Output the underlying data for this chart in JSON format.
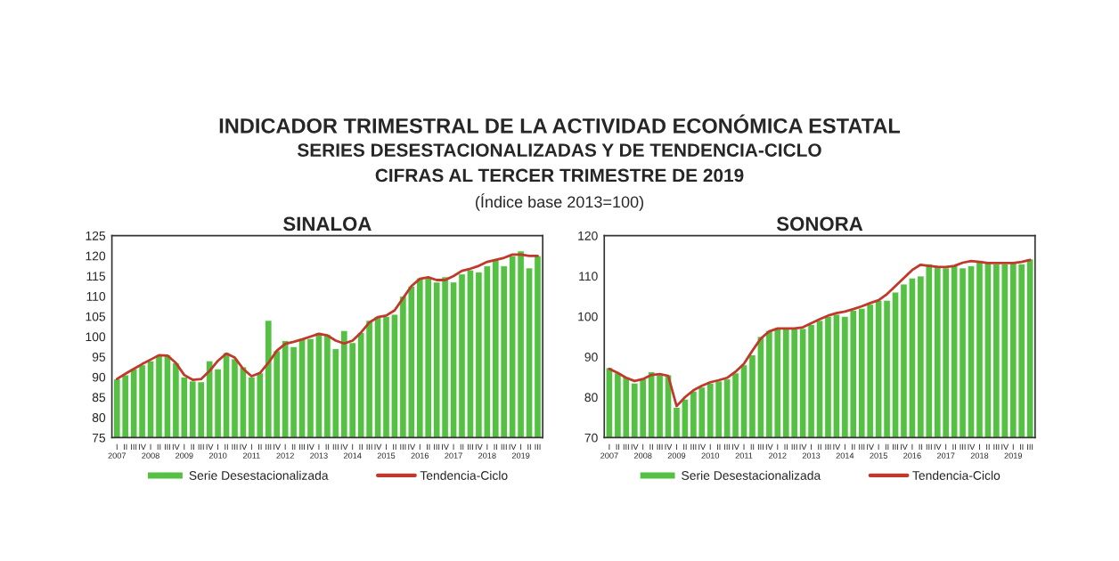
{
  "chart_data": [
    {
      "type": "bar",
      "title": "SINALOA",
      "annotations": [
        "INDICADOR TRIMESTRAL DE LA ACTIVIDAD ECONÓMICA ESTATAL",
        "SERIES DESESTACIONALIZADAS Y DE TENDENCIA-CICLO",
        "CIFRAS AL TERCER TRIMESTRE DE 2019",
        "(Índice base 2013=100)"
      ],
      "categories": [
        "I\n2007",
        "II",
        "III",
        "IV",
        "I\n2008",
        "II",
        "III",
        "IV",
        "I\n2009",
        "II",
        "III",
        "IV",
        "I\n2010",
        "II",
        "III",
        "IV",
        "I\n2011",
        "II",
        "III",
        "IV",
        "I\n2012",
        "II",
        "III",
        "IV",
        "I\n2013",
        "II",
        "III",
        "IV",
        "I\n2014",
        "II",
        "III",
        "IV",
        "I\n2015",
        "II",
        "III",
        "IV",
        "I\n2016",
        "II",
        "III",
        "IV",
        "I\n2017",
        "II",
        "III",
        "IV",
        "I\n2018",
        "II",
        "III",
        "IV",
        "I\n2019",
        "II",
        "III"
      ],
      "series": [
        {
          "name": "Serie Desestacionalizada",
          "color": "#55c043",
          "values": [
            89.5,
            90.5,
            92,
            93,
            94,
            95.5,
            95.5,
            93.5,
            90,
            89,
            88.8,
            94,
            92,
            96,
            94.5,
            92.5,
            90,
            91,
            104,
            96.5,
            99,
            97.5,
            99.5,
            99.5,
            101,
            100.5,
            97,
            101.5,
            98.5,
            101,
            104,
            105,
            105,
            105.5,
            110,
            112.5,
            114.5,
            114.5,
            113.5,
            114.8,
            113.5,
            115.5,
            116.5,
            116,
            117.5,
            119,
            117.5,
            120,
            121.2,
            117,
            120
          ]
        },
        {
          "name": "Tendencia-Ciclo",
          "type": "line",
          "color": "#c0392b",
          "values": [
            89.5,
            90.8,
            92,
            93.2,
            94.3,
            95.4,
            95.3,
            93.5,
            90.5,
            89.3,
            89.5,
            91.5,
            94,
            95.8,
            94.8,
            92,
            90.2,
            91,
            93.5,
            96.5,
            98.2,
            98.7,
            99.3,
            100,
            100.7,
            100.3,
            99,
            98.3,
            99,
            101,
            103.5,
            104.8,
            105.2,
            106.5,
            109.5,
            112.5,
            114.3,
            114.7,
            114,
            114,
            115,
            116.3,
            116.8,
            117.5,
            118.5,
            119,
            119.5,
            120.3,
            120.3,
            120,
            120
          ]
        }
      ],
      "ylim": [
        75,
        125
      ],
      "yticks": [
        75,
        80,
        85,
        90,
        95,
        100,
        105,
        110,
        115,
        120,
        125
      ],
      "legend": "bottom"
    },
    {
      "type": "bar",
      "title": "SONORA",
      "categories": [
        "I\n2007",
        "II",
        "III",
        "IV",
        "I\n2008",
        "II",
        "III",
        "IV",
        "I\n2009",
        "II",
        "III",
        "IV",
        "I\n2010",
        "II",
        "III",
        "IV",
        "I\n2011",
        "II",
        "III",
        "IV",
        "I\n2012",
        "II",
        "III",
        "IV",
        "I\n2013",
        "II",
        "III",
        "IV",
        "I\n2014",
        "II",
        "III",
        "IV",
        "I\n2015",
        "II",
        "III",
        "IV",
        "I\n2016",
        "II",
        "III",
        "IV",
        "I\n2017",
        "II",
        "III",
        "IV",
        "I\n2018",
        "II",
        "III",
        "IV",
        "I\n2019",
        "II",
        "III"
      ],
      "series": [
        {
          "name": "Serie Desestacionalizada",
          "color": "#55c043",
          "values": [
            87.3,
            86,
            85,
            83.5,
            84.5,
            86.3,
            85.5,
            85.5,
            77.5,
            79.5,
            81.5,
            82.5,
            83.5,
            84,
            84.5,
            86,
            88,
            90.5,
            95,
            96.5,
            97,
            97,
            97,
            97,
            98,
            99,
            100,
            100.5,
            100,
            101.5,
            102,
            103,
            104,
            104,
            106,
            108,
            109.5,
            110,
            113,
            112.5,
            112,
            112.5,
            112,
            112.5,
            113.8,
            113.5,
            113,
            113,
            113.2,
            113,
            114.2
          ]
        },
        {
          "name": "Tendencia-Ciclo",
          "type": "line",
          "color": "#c0392b",
          "values": [
            87,
            86,
            84.8,
            84,
            84.5,
            85.5,
            85.7,
            85.3,
            77.8,
            80,
            81.7,
            82.8,
            83.7,
            84.2,
            84.8,
            86.3,
            88.3,
            91.5,
            94.5,
            96.3,
            97,
            97,
            97,
            97.3,
            98.3,
            99.3,
            100.2,
            100.8,
            101.2,
            101.8,
            102.5,
            103.3,
            104,
            105.5,
            107.5,
            109.5,
            111.5,
            112.8,
            112.5,
            112.3,
            112.2,
            112.5,
            113.3,
            113.7,
            113.5,
            113.2,
            113.2,
            113.2,
            113.2,
            113.5,
            114
          ]
        }
      ],
      "ylim": [
        70,
        120
      ],
      "yticks": [
        70,
        80,
        90,
        100,
        110,
        120
      ],
      "legend": "bottom"
    }
  ]
}
